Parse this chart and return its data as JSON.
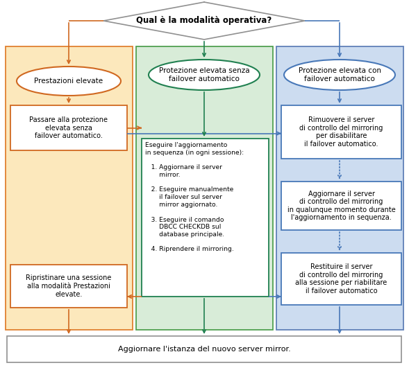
{
  "diamond_text": "Qual è la modalità operativa?",
  "bg_left_color": "#fce8bc",
  "bg_left_border": "#e08030",
  "bg_center_color": "#d8ecd8",
  "bg_center_border": "#50a050",
  "bg_right_color": "#ccdcf0",
  "bg_right_border": "#6080b8",
  "orange": "#d06820",
  "green": "#208050",
  "blue": "#4878b8",
  "gray": "#909090",
  "ellipse_left": "Prestazioni elevate",
  "ellipse_center": "Protezione elevata senza\nfailover automatico",
  "ellipse_right": "Protezione elevata con\nfailover automatico",
  "box_l1": "Passare alla protezione\nelevata senza\nfailover automatico.",
  "box_l2": "Ripristinare una sessione\nalla modalità Prestazioni\nelevate.",
  "box_center": "Eseguire l'aggiornamento\nin sequenza (in ogni sessione):\n\n   1. Aggiornare il server\n       mirror.\n\n   2. Eseguire manualmente\n       il failover sul server\n       mirror aggiornato.\n\n   3. Eseguire il comando\n       DBCC CHECKDB sul\n       database principale.\n\n   4. Riprendere il mirroring.",
  "box_r1": "Rimuovere il server\ndi controllo del mirroring\nper disabilitare\nil failover automatico.",
  "box_r2": "Aggiornare il server\ndi controllo del mirroring\nin qualunque momento durante\nl'aggiornamento in sequenza.",
  "box_r3": "Restituire il server\ndi controllo del mirroring\nalla sessione per riabilitare\nil failover automatico",
  "bottom_text": "Aggiornare l'istanza del nuovo server mirror.",
  "figw": 5.89,
  "figh": 5.34,
  "dpi": 100
}
